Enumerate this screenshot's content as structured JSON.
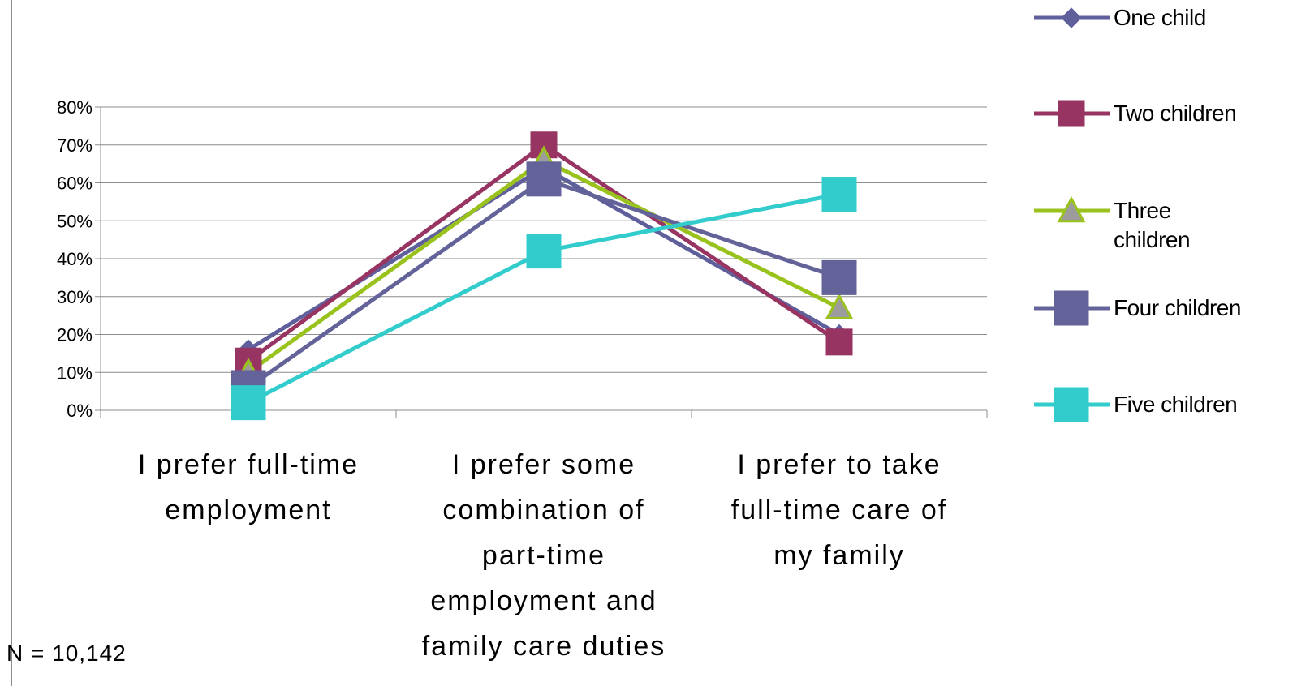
{
  "chart_data": {
    "type": "line",
    "categories": [
      "I prefer full-time employment",
      "I prefer some combination of part-time employment and family care duties",
      "I prefer to take full-time care of my family"
    ],
    "category_lines": [
      [
        "I prefer full-time",
        "employment"
      ],
      [
        "I prefer some",
        "combination of",
        "part-time",
        "employment and",
        "family care duties"
      ],
      [
        "I prefer to take",
        "full-time care of",
        "my family"
      ]
    ],
    "series": [
      {
        "name": "One child",
        "values": [
          16,
          64,
          20
        ],
        "color": "#5f5f9b",
        "marker": "diamond"
      },
      {
        "name": "Two children",
        "values": [
          13,
          70,
          18
        ],
        "color": "#983462",
        "marker": "square"
      },
      {
        "name": "Three children",
        "values": [
          10,
          66,
          27
        ],
        "color": "#9ac21c",
        "marker": "triangle"
      },
      {
        "name": "Four children",
        "values": [
          6,
          61,
          35
        ],
        "color": "#636399",
        "marker": "square-large"
      },
      {
        "name": "Five children",
        "values": [
          2,
          42,
          57
        ],
        "color": "#33cccc",
        "marker": "square-large"
      }
    ],
    "y_ticks": [
      "0%",
      "10%",
      "20%",
      "30%",
      "40%",
      "50%",
      "60%",
      "70%",
      "80%"
    ],
    "ylim": [
      0,
      80
    ],
    "grid": true,
    "legend_position": "right",
    "title": "",
    "xlabel": "",
    "ylabel": ""
  },
  "legend_lines": [
    [
      "One child"
    ],
    [
      "Two children"
    ],
    [
      "Three",
      "children"
    ],
    [
      "Four children"
    ],
    [
      "Five children"
    ]
  ],
  "note": "N = 10,142"
}
